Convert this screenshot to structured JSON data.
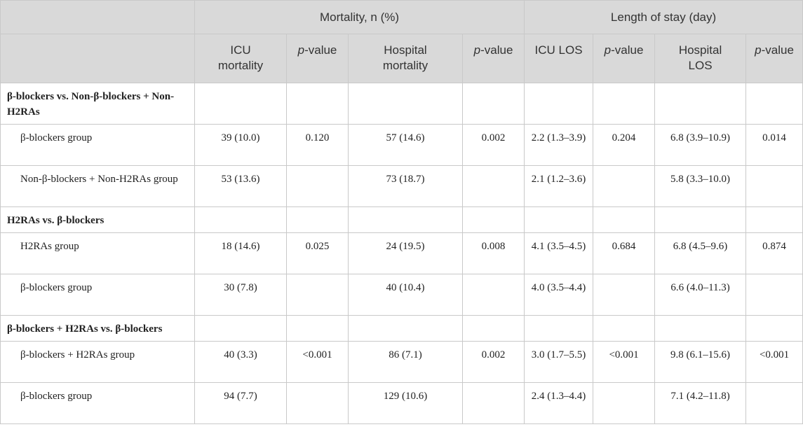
{
  "header": {
    "group_mortality": "Mortality, n (%)",
    "group_los": "Length of stay (day)",
    "cols": [
      {
        "line1": "ICU",
        "line2": "mortality"
      },
      {
        "italic": "p",
        "rest": "-value"
      },
      {
        "line1": "Hospital",
        "line2": "mortality"
      },
      {
        "italic": "p",
        "rest": "-value"
      },
      {
        "line1": "ICU LOS",
        "line2": ""
      },
      {
        "italic": "p",
        "rest": "-value"
      },
      {
        "line1": "Hospital",
        "line2": "LOS"
      },
      {
        "italic": "p",
        "rest": "-value"
      }
    ]
  },
  "rows": [
    {
      "type": "section",
      "label": "β-blockers vs. Non-β-blockers + Non-H2RAs"
    },
    {
      "type": "data",
      "label": "β-blockers group",
      "icu_mort": "39 (10.0)",
      "p1": "0.120",
      "hosp_mort": "57 (14.6)",
      "p2": "0.002",
      "icu_los": "2.2 (1.3–3.9)",
      "p3": "0.204",
      "hosp_los": "6.8 (3.9–10.9)",
      "p4": "0.014"
    },
    {
      "type": "data",
      "label": "Non-β-blockers + Non-H2RAs group",
      "icu_mort": "53 (13.6)",
      "p1": "",
      "hosp_mort": "73 (18.7)",
      "p2": "",
      "icu_los": "2.1 (1.2–3.6)",
      "p3": "",
      "hosp_los": "5.8 (3.3–10.0)",
      "p4": ""
    },
    {
      "type": "section",
      "label": "H2RAs vs. β-blockers"
    },
    {
      "type": "data",
      "label": "H2RAs group",
      "icu_mort": "18 (14.6)",
      "p1": "0.025",
      "hosp_mort": "24 (19.5)",
      "p2": "0.008",
      "icu_los": "4.1 (3.5–4.5)",
      "p3": "0.684",
      "hosp_los": "6.8 (4.5–9.6)",
      "p4": "0.874"
    },
    {
      "type": "data",
      "label": "β-blockers group",
      "icu_mort": "30 (7.8)",
      "p1": "",
      "hosp_mort": "40 (10.4)",
      "p2": "",
      "icu_los": "4.0 (3.5–4.4)",
      "p3": "",
      "hosp_los": "6.6 (4.0–11.3)",
      "p4": ""
    },
    {
      "type": "section",
      "label": "β-blockers + H2RAs vs. β-blockers"
    },
    {
      "type": "data",
      "label": "β-blockers + H2RAs group",
      "icu_mort": "40 (3.3)",
      "p1": "<0.001",
      "hosp_mort": "86 (7.1)",
      "p2": "0.002",
      "icu_los": "3.0 (1.7–5.5)",
      "p3": "<0.001",
      "hosp_los": "9.8 (6.1–15.6)",
      "p4": "<0.001"
    },
    {
      "type": "data",
      "label": "β-blockers group",
      "icu_mort": "94 (7.7)",
      "p1": "",
      "hosp_mort": "129 (10.6)",
      "p2": "",
      "icu_los": "2.4 (1.3–4.4)",
      "p3": "",
      "hosp_los": "7.1 (4.2–11.8)",
      "p4": ""
    }
  ]
}
